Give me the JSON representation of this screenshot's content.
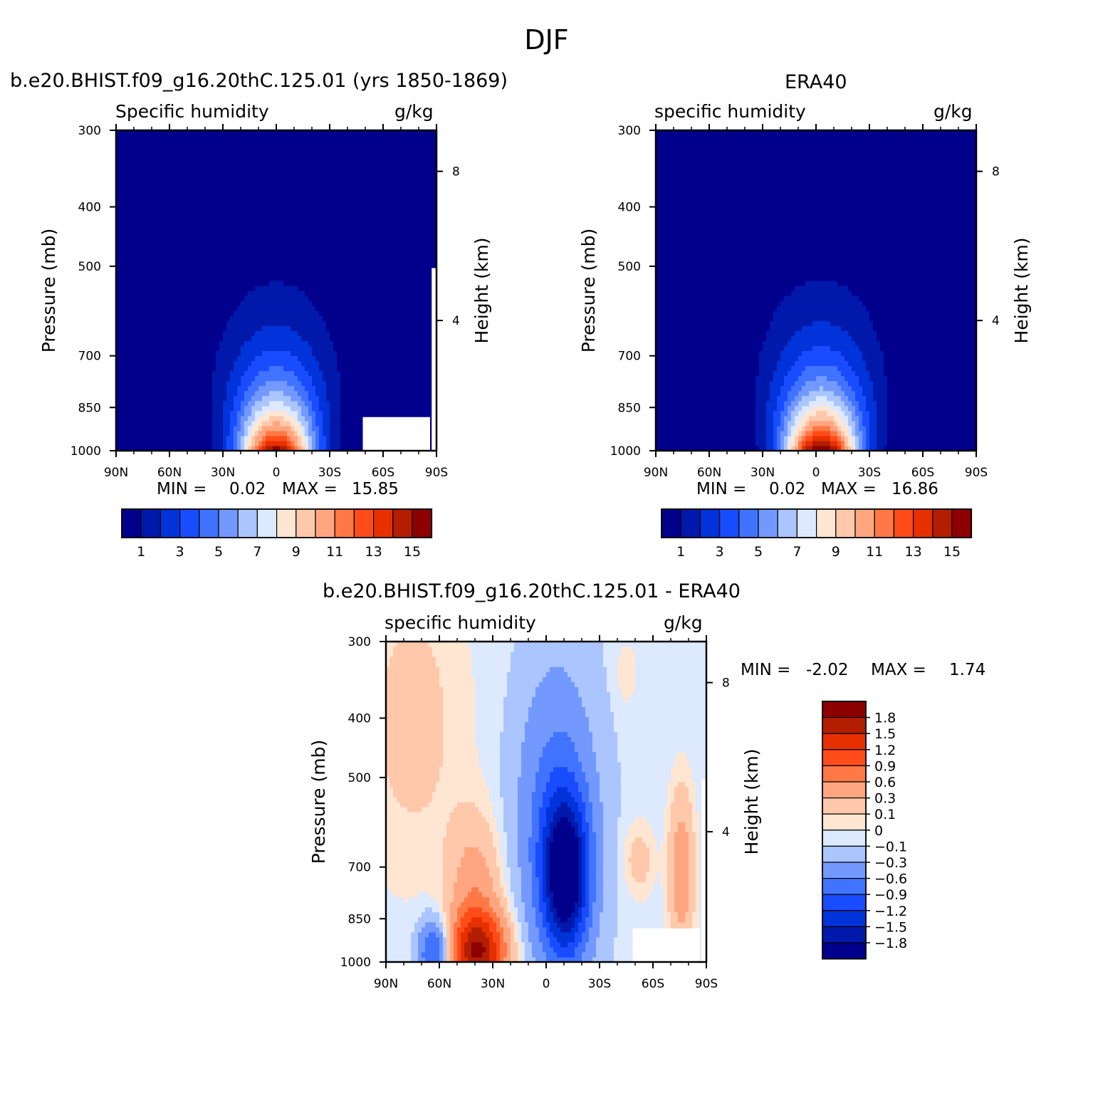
{
  "figure": {
    "title": "DJF"
  },
  "colors": {
    "seq16": [
      "#00008c",
      "#0019ab",
      "#0033d9",
      "#1a4cff",
      "#4073ff",
      "#7399ff",
      "#aac5ff",
      "#dce9ff",
      "#ffe6d2",
      "#ffc8aa",
      "#ffa680",
      "#ff7845",
      "#ff4c19",
      "#e63000",
      "#b31e00",
      "#8c0000"
    ],
    "diff15": [
      "#00008c",
      "#0019ab",
      "#0033d9",
      "#1a4cff",
      "#4073ff",
      "#7399ff",
      "#aac5ff",
      "#dce9ff",
      "#ffe6d2",
      "#ffc8aa",
      "#ffa680",
      "#ff7845",
      "#ff4c19",
      "#e63000",
      "#b31e00",
      "#8c0000"
    ]
  },
  "chart_data": [
    {
      "type": "contour",
      "title": "b.e20.BHIST.f09_g16.20thC.125.01 (yrs 1850-1869)",
      "left_label": "Specific humidity",
      "right_label": "g/kg",
      "xlabel": "",
      "ylabel": "Pressure (mb)",
      "y2label": "Height (km)",
      "x_ticks": [
        "90N",
        "60N",
        "30N",
        "0",
        "30S",
        "60S",
        "90S"
      ],
      "y_ticks": [
        "300",
        "400",
        "500",
        "700",
        "850",
        "1000"
      ],
      "y2_ticks": [
        "8",
        "4"
      ],
      "min_label": "MIN =",
      "min_value": "0.02",
      "max_label": "MAX =",
      "max_value": "15.85",
      "min": 0.02,
      "max": 15.85,
      "colorbar_labels": [
        "1",
        "3",
        "5",
        "7",
        "9",
        "11",
        "13",
        "15"
      ],
      "peak_lat": 0,
      "peak_value": 15.85
    },
    {
      "type": "contour",
      "title": "ERA40",
      "left_label": "specific humidity",
      "right_label": "g/kg",
      "xlabel": "",
      "ylabel": "Pressure (mb)",
      "y2label": "Height (km)",
      "x_ticks": [
        "90N",
        "60N",
        "30N",
        "0",
        "30S",
        "60S",
        "90S"
      ],
      "y_ticks": [
        "300",
        "400",
        "500",
        "700",
        "850",
        "1000"
      ],
      "y2_ticks": [
        "8",
        "4"
      ],
      "min_label": "MIN =",
      "min_value": "0.02",
      "max_label": "MAX =",
      "max_value": "16.86",
      "min": 0.02,
      "max": 16.86,
      "colorbar_labels": [
        "1",
        "3",
        "5",
        "7",
        "9",
        "11",
        "13",
        "15"
      ],
      "peak_lat": -3,
      "peak_value": 16.86
    },
    {
      "type": "contour",
      "title": "b.e20.BHIST.f09_g16.20thC.125.01 - ERA40",
      "left_label": "specific humidity",
      "right_label": "g/kg",
      "xlabel": "",
      "ylabel": "Pressure (mb)",
      "y2label": "Height (km)",
      "x_ticks": [
        "90N",
        "60N",
        "30N",
        "0",
        "30S",
        "60S",
        "90S"
      ],
      "y_ticks": [
        "300",
        "400",
        "500",
        "700",
        "850",
        "1000"
      ],
      "y2_ticks": [
        "8",
        "4"
      ],
      "min_label": "MIN =",
      "min_value": "-2.02",
      "max_label": "MAX =",
      "max_value": "1.74",
      "min": -2.02,
      "max": 1.74,
      "colorbar_labels": [
        "1.8",
        "1.5",
        "1.2",
        "0.9",
        "0.6",
        "0.3",
        "0.1",
        "0",
        "-0.1",
        "-0.3",
        "-0.6",
        "-0.9",
        "-1.2",
        "-1.5",
        "-1.8"
      ]
    }
  ]
}
